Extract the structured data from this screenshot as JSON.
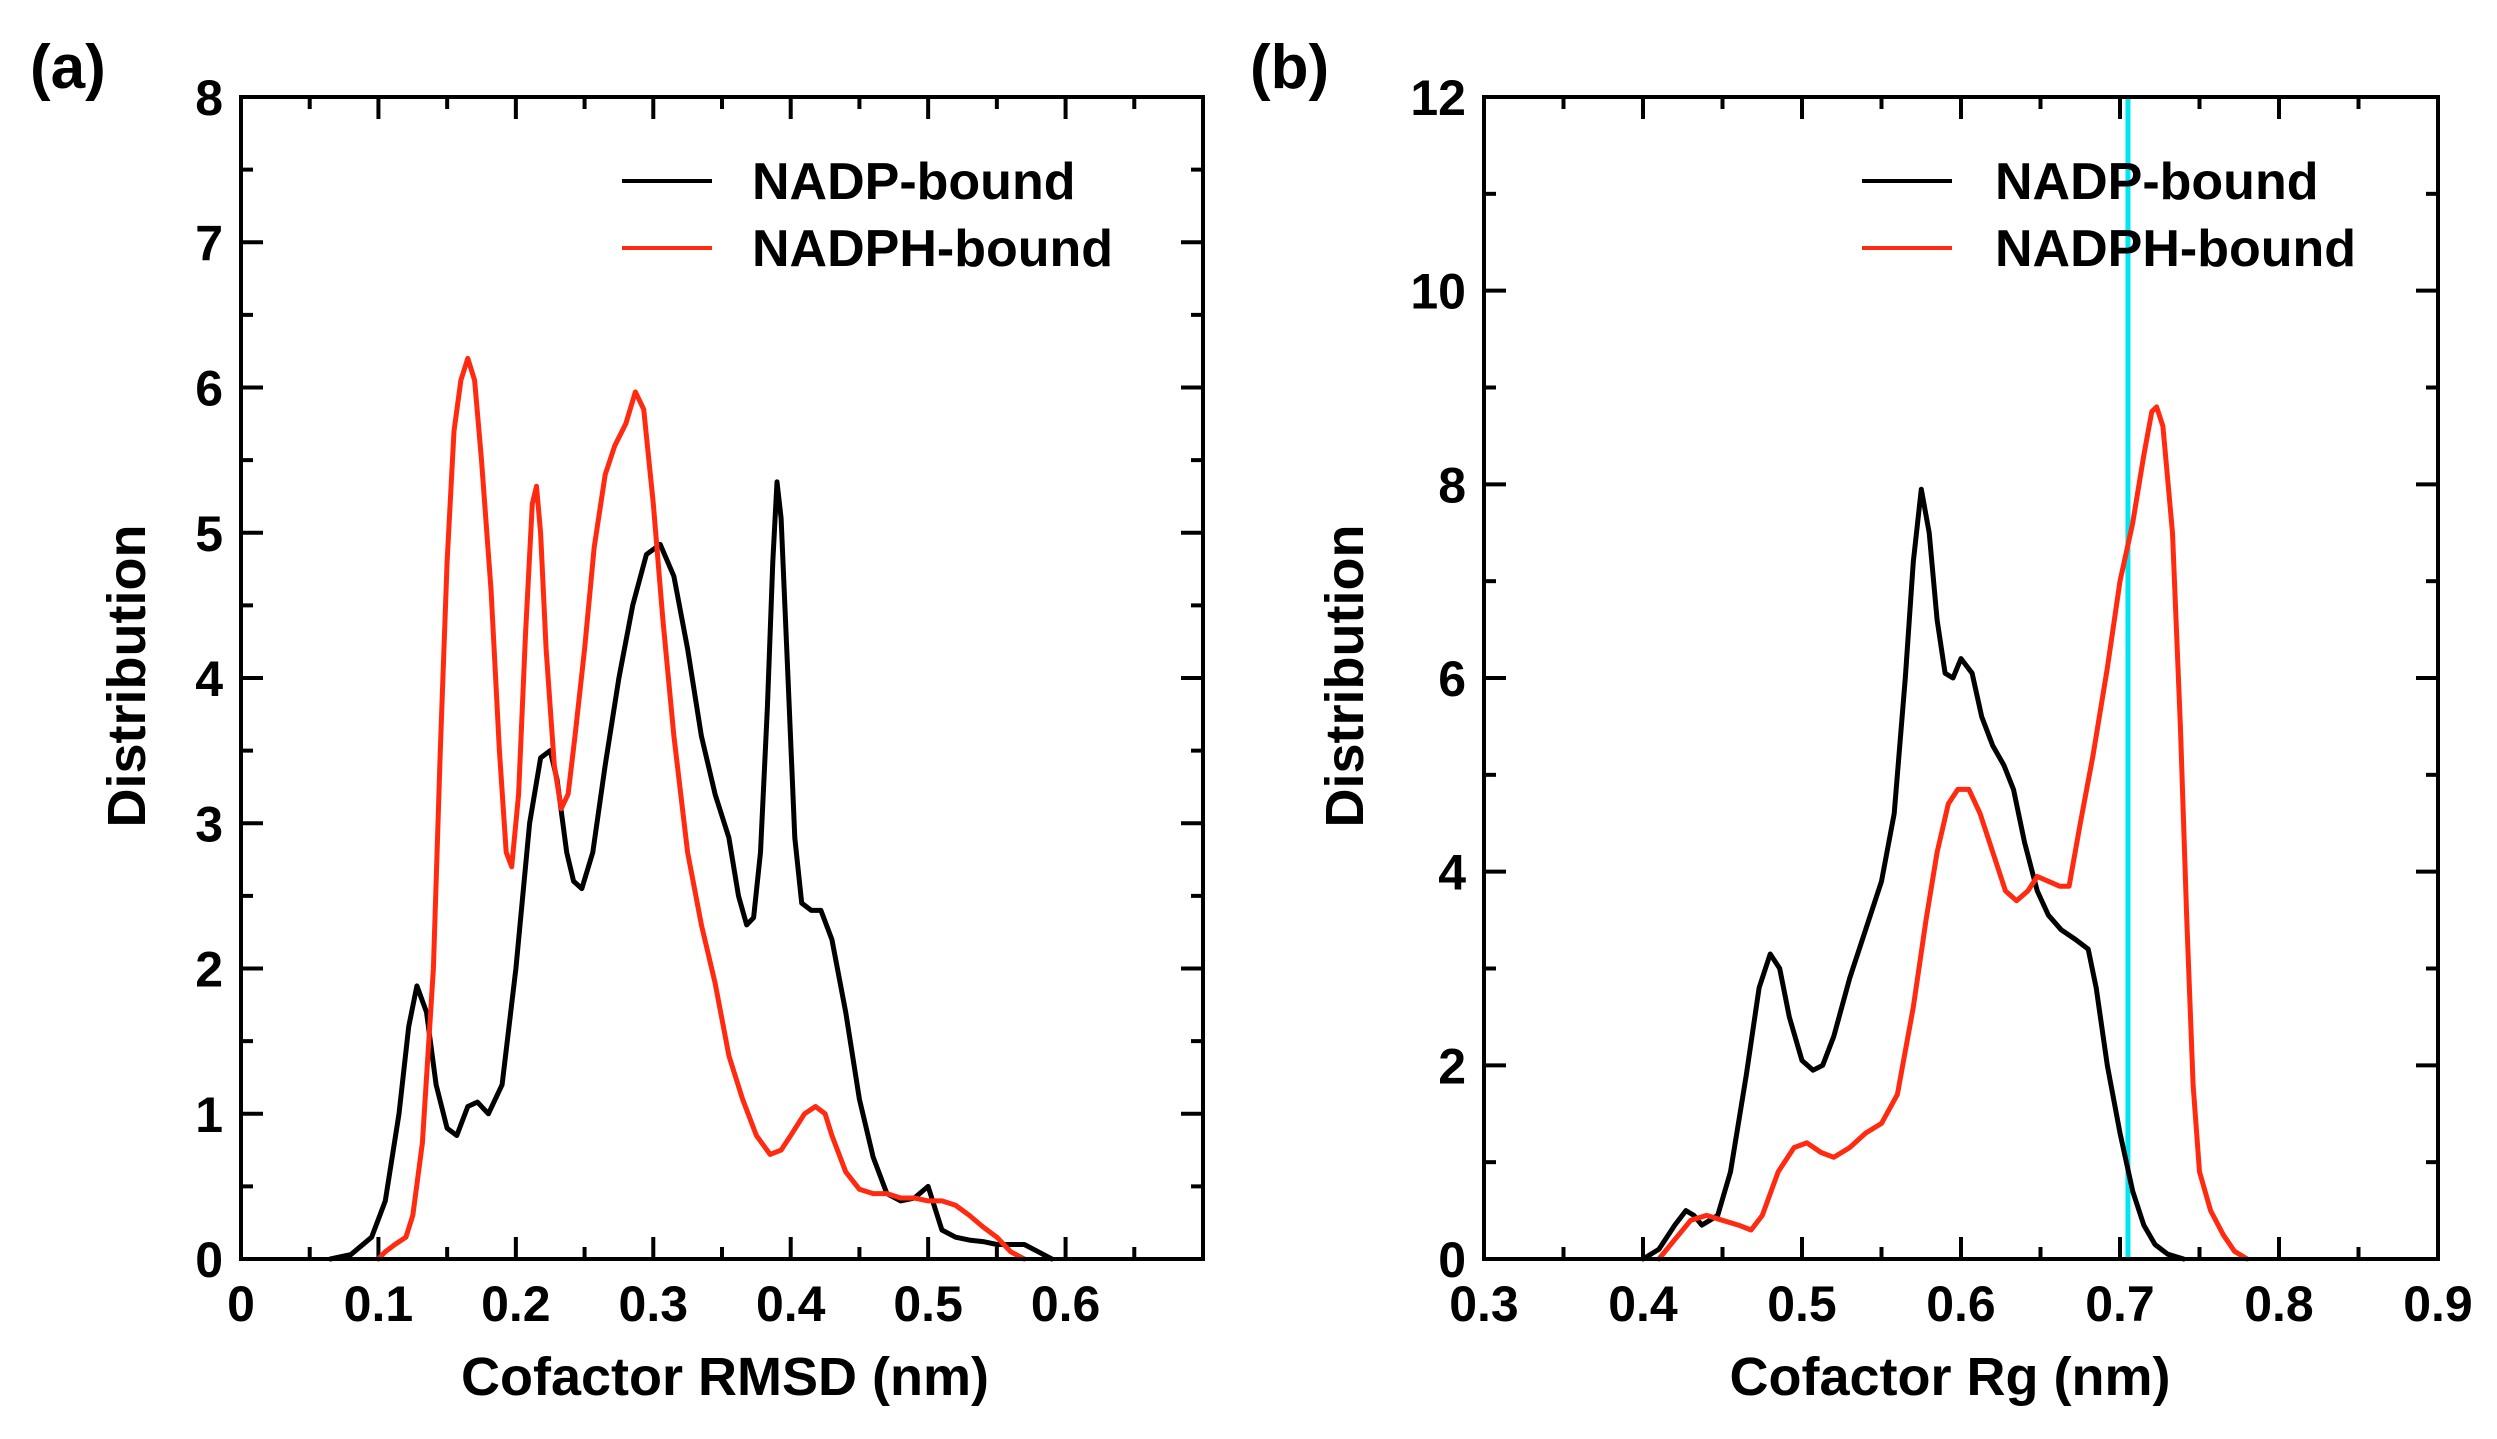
{
  "chart_data": [
    {
      "panel_label": "(a)",
      "type": "line",
      "xlabel": "Cofactor RMSD (nm)",
      "ylabel": "Distribution",
      "xlim": [
        0,
        0.7
      ],
      "ylim": [
        0,
        8
      ],
      "xticks": [
        0,
        0.1,
        0.2,
        0.3,
        0.4,
        0.5,
        0.6
      ],
      "xtick_labels": [
        "0",
        "0.1",
        "0.2",
        "0.3",
        "0.4",
        "0.5",
        "0.6"
      ],
      "yticks": [
        0,
        1,
        2,
        3,
        4,
        5,
        6,
        7,
        8
      ],
      "ytick_labels": [
        "0",
        "1",
        "2",
        "3",
        "4",
        "5",
        "6",
        "7",
        "8"
      ],
      "legend_position": "top-right",
      "series": [
        {
          "name": "NADP-bound",
          "color": "#000000",
          "points": [
            [
              0.065,
              0
            ],
            [
              0.08,
              0.03
            ],
            [
              0.095,
              0.15
            ],
            [
              0.105,
              0.4
            ],
            [
              0.115,
              1.0
            ],
            [
              0.122,
              1.6
            ],
            [
              0.128,
              1.88
            ],
            [
              0.135,
              1.7
            ],
            [
              0.142,
              1.2
            ],
            [
              0.15,
              0.9
            ],
            [
              0.157,
              0.85
            ],
            [
              0.165,
              1.05
            ],
            [
              0.172,
              1.08
            ],
            [
              0.18,
              1.0
            ],
            [
              0.19,
              1.2
            ],
            [
              0.2,
              2.0
            ],
            [
              0.21,
              3.0
            ],
            [
              0.218,
              3.45
            ],
            [
              0.225,
              3.5
            ],
            [
              0.23,
              3.3
            ],
            [
              0.237,
              2.8
            ],
            [
              0.242,
              2.6
            ],
            [
              0.248,
              2.55
            ],
            [
              0.256,
              2.8
            ],
            [
              0.265,
              3.4
            ],
            [
              0.275,
              4.0
            ],
            [
              0.285,
              4.5
            ],
            [
              0.295,
              4.85
            ],
            [
              0.305,
              4.92
            ],
            [
              0.315,
              4.7
            ],
            [
              0.325,
              4.2
            ],
            [
              0.335,
              3.6
            ],
            [
              0.345,
              3.2
            ],
            [
              0.355,
              2.9
            ],
            [
              0.362,
              2.5
            ],
            [
              0.368,
              2.3
            ],
            [
              0.373,
              2.35
            ],
            [
              0.378,
              2.8
            ],
            [
              0.383,
              3.8
            ],
            [
              0.387,
              4.8
            ],
            [
              0.39,
              5.35
            ],
            [
              0.393,
              5.1
            ],
            [
              0.398,
              4.0
            ],
            [
              0.403,
              2.9
            ],
            [
              0.408,
              2.45
            ],
            [
              0.415,
              2.4
            ],
            [
              0.422,
              2.4
            ],
            [
              0.43,
              2.2
            ],
            [
              0.44,
              1.7
            ],
            [
              0.45,
              1.1
            ],
            [
              0.46,
              0.7
            ],
            [
              0.47,
              0.45
            ],
            [
              0.48,
              0.4
            ],
            [
              0.49,
              0.42
            ],
            [
              0.5,
              0.5
            ],
            [
              0.505,
              0.35
            ],
            [
              0.51,
              0.2
            ],
            [
              0.52,
              0.15
            ],
            [
              0.53,
              0.13
            ],
            [
              0.54,
              0.12
            ],
            [
              0.55,
              0.1
            ],
            [
              0.56,
              0.1
            ],
            [
              0.57,
              0.1
            ],
            [
              0.58,
              0.05
            ],
            [
              0.59,
              0
            ]
          ]
        },
        {
          "name": "NADPH-bound",
          "color": "#ff2a10",
          "points": [
            [
              0.1,
              0
            ],
            [
              0.105,
              0.05
            ],
            [
              0.112,
              0.1
            ],
            [
              0.12,
              0.15
            ],
            [
              0.125,
              0.3
            ],
            [
              0.132,
              0.8
            ],
            [
              0.14,
              2.0
            ],
            [
              0.145,
              3.5
            ],
            [
              0.15,
              4.8
            ],
            [
              0.155,
              5.7
            ],
            [
              0.16,
              6.05
            ],
            [
              0.165,
              6.2
            ],
            [
              0.17,
              6.05
            ],
            [
              0.175,
              5.5
            ],
            [
              0.182,
              4.6
            ],
            [
              0.188,
              3.5
            ],
            [
              0.193,
              2.8
            ],
            [
              0.197,
              2.7
            ],
            [
              0.202,
              3.2
            ],
            [
              0.207,
              4.3
            ],
            [
              0.212,
              5.2
            ],
            [
              0.215,
              5.32
            ],
            [
              0.218,
              5.0
            ],
            [
              0.222,
              4.2
            ],
            [
              0.228,
              3.4
            ],
            [
              0.233,
              3.1
            ],
            [
              0.238,
              3.2
            ],
            [
              0.243,
              3.6
            ],
            [
              0.25,
              4.2
            ],
            [
              0.257,
              4.9
            ],
            [
              0.265,
              5.4
            ],
            [
              0.272,
              5.6
            ],
            [
              0.28,
              5.75
            ],
            [
              0.287,
              5.97
            ],
            [
              0.293,
              5.85
            ],
            [
              0.3,
              5.2
            ],
            [
              0.307,
              4.4
            ],
            [
              0.315,
              3.6
            ],
            [
              0.325,
              2.8
            ],
            [
              0.335,
              2.3
            ],
            [
              0.345,
              1.9
            ],
            [
              0.355,
              1.4
            ],
            [
              0.365,
              1.1
            ],
            [
              0.375,
              0.85
            ],
            [
              0.385,
              0.72
            ],
            [
              0.393,
              0.75
            ],
            [
              0.4,
              0.85
            ],
            [
              0.41,
              1.0
            ],
            [
              0.418,
              1.05
            ],
            [
              0.425,
              1.0
            ],
            [
              0.43,
              0.85
            ],
            [
              0.44,
              0.6
            ],
            [
              0.45,
              0.48
            ],
            [
              0.46,
              0.45
            ],
            [
              0.47,
              0.45
            ],
            [
              0.48,
              0.42
            ],
            [
              0.49,
              0.42
            ],
            [
              0.5,
              0.4
            ],
            [
              0.51,
              0.4
            ],
            [
              0.52,
              0.37
            ],
            [
              0.53,
              0.3
            ],
            [
              0.54,
              0.22
            ],
            [
              0.55,
              0.15
            ],
            [
              0.56,
              0.05
            ],
            [
              0.57,
              0
            ]
          ]
        }
      ]
    },
    {
      "panel_label": "(b)",
      "type": "line",
      "xlabel": "Cofactor Rg (nm)",
      "ylabel": "Distribution",
      "xlim": [
        0.3,
        0.9
      ],
      "ylim": [
        0,
        12
      ],
      "xticks": [
        0.3,
        0.4,
        0.5,
        0.6,
        0.7,
        0.8,
        0.9
      ],
      "xtick_labels": [
        "0.3",
        "0.4",
        "0.5",
        "0.6",
        "0.7",
        "0.8",
        "0.9"
      ],
      "yticks": [
        0,
        2,
        4,
        6,
        8,
        10,
        12
      ],
      "ytick_labels": [
        "0",
        "2",
        "4",
        "6",
        "8",
        "10",
        "12"
      ],
      "legend_position": "top-right",
      "vline": {
        "x": 0.705,
        "color": "#00e5ee"
      },
      "series": [
        {
          "name": "NADP-bound",
          "color": "#000000",
          "points": [
            [
              0.4,
              0
            ],
            [
              0.41,
              0.1
            ],
            [
              0.42,
              0.35
            ],
            [
              0.427,
              0.5
            ],
            [
              0.432,
              0.45
            ],
            [
              0.437,
              0.35
            ],
            [
              0.442,
              0.4
            ],
            [
              0.447,
              0.45
            ],
            [
              0.455,
              0.9
            ],
            [
              0.465,
              1.9
            ],
            [
              0.473,
              2.8
            ],
            [
              0.48,
              3.15
            ],
            [
              0.486,
              3.0
            ],
            [
              0.492,
              2.5
            ],
            [
              0.5,
              2.05
            ],
            [
              0.507,
              1.95
            ],
            [
              0.513,
              2.0
            ],
            [
              0.52,
              2.3
            ],
            [
              0.53,
              2.9
            ],
            [
              0.54,
              3.4
            ],
            [
              0.55,
              3.9
            ],
            [
              0.558,
              4.6
            ],
            [
              0.565,
              6.0
            ],
            [
              0.57,
              7.2
            ],
            [
              0.575,
              7.95
            ],
            [
              0.58,
              7.5
            ],
            [
              0.585,
              6.6
            ],
            [
              0.59,
              6.05
            ],
            [
              0.595,
              6.0
            ],
            [
              0.6,
              6.2
            ],
            [
              0.607,
              6.05
            ],
            [
              0.613,
              5.6
            ],
            [
              0.62,
              5.3
            ],
            [
              0.627,
              5.1
            ],
            [
              0.633,
              4.85
            ],
            [
              0.64,
              4.3
            ],
            [
              0.648,
              3.8
            ],
            [
              0.655,
              3.55
            ],
            [
              0.663,
              3.4
            ],
            [
              0.672,
              3.3
            ],
            [
              0.68,
              3.2
            ],
            [
              0.685,
              2.8
            ],
            [
              0.692,
              2.0
            ],
            [
              0.7,
              1.3
            ],
            [
              0.708,
              0.7
            ],
            [
              0.715,
              0.35
            ],
            [
              0.722,
              0.15
            ],
            [
              0.73,
              0.05
            ],
            [
              0.74,
              0
            ]
          ]
        },
        {
          "name": "NADPH-bound",
          "color": "#ff2a10",
          "points": [
            [
              0.41,
              0
            ],
            [
              0.42,
              0.2
            ],
            [
              0.43,
              0.4
            ],
            [
              0.44,
              0.45
            ],
            [
              0.45,
              0.4
            ],
            [
              0.46,
              0.35
            ],
            [
              0.468,
              0.3
            ],
            [
              0.475,
              0.45
            ],
            [
              0.485,
              0.9
            ],
            [
              0.495,
              1.15
            ],
            [
              0.503,
              1.2
            ],
            [
              0.512,
              1.1
            ],
            [
              0.52,
              1.05
            ],
            [
              0.53,
              1.15
            ],
            [
              0.54,
              1.3
            ],
            [
              0.55,
              1.4
            ],
            [
              0.56,
              1.7
            ],
            [
              0.57,
              2.6
            ],
            [
              0.578,
              3.5
            ],
            [
              0.585,
              4.2
            ],
            [
              0.592,
              4.7
            ],
            [
              0.598,
              4.85
            ],
            [
              0.605,
              4.85
            ],
            [
              0.612,
              4.6
            ],
            [
              0.62,
              4.2
            ],
            [
              0.628,
              3.8
            ],
            [
              0.635,
              3.7
            ],
            [
              0.642,
              3.8
            ],
            [
              0.648,
              3.95
            ],
            [
              0.655,
              3.9
            ],
            [
              0.662,
              3.85
            ],
            [
              0.668,
              3.85
            ],
            [
              0.675,
              4.5
            ],
            [
              0.683,
              5.2
            ],
            [
              0.692,
              6.1
            ],
            [
              0.7,
              7.0
            ],
            [
              0.708,
              7.6
            ],
            [
              0.715,
              8.3
            ],
            [
              0.72,
              8.75
            ],
            [
              0.723,
              8.8
            ],
            [
              0.727,
              8.6
            ],
            [
              0.733,
              7.5
            ],
            [
              0.738,
              5.5
            ],
            [
              0.742,
              3.5
            ],
            [
              0.746,
              1.8
            ],
            [
              0.75,
              0.9
            ],
            [
              0.757,
              0.5
            ],
            [
              0.765,
              0.25
            ],
            [
              0.772,
              0.08
            ],
            [
              0.78,
              0
            ]
          ]
        }
      ]
    }
  ]
}
